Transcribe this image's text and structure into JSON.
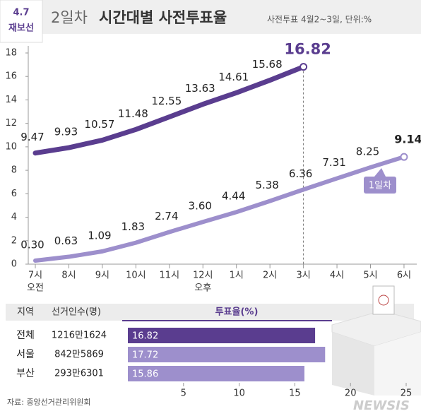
{
  "header": {
    "badge": "4.7",
    "badge_sub": "재보선",
    "title": "2일차",
    "title_bold": "시간대별 사전투표율",
    "subtitle": "사전투표 4월2~3일, 단위:%"
  },
  "chart_data": [
    {
      "type": "line",
      "categories": [
        "7시",
        "8시",
        "9시",
        "10시",
        "11시",
        "12시",
        "1시",
        "2시",
        "3시",
        "4시",
        "5시",
        "6시"
      ],
      "category_sublabels": [
        "오전",
        null,
        null,
        null,
        null,
        "오후",
        null,
        null,
        null,
        null,
        null,
        null
      ],
      "ylim": [
        0,
        18
      ],
      "yticks": [
        0,
        2,
        4,
        6,
        8,
        10,
        12,
        14,
        16,
        18
      ],
      "grid": false,
      "series": [
        {
          "color": "#5a3d8f",
          "values": [
            9.47,
            9.93,
            10.57,
            11.48,
            12.55,
            13.63,
            14.61,
            15.68,
            16.82,
            null,
            null,
            null
          ]
        },
        {
          "name": "1일차",
          "color": "#9d8fcc",
          "values": [
            0.3,
            0.63,
            1.09,
            1.83,
            2.74,
            3.6,
            4.44,
            5.38,
            6.36,
            7.31,
            8.25,
            9.14
          ],
          "value_labels": [
            "0.30",
            "0.63",
            "1.09",
            "1.83",
            "2.74",
            "3.60",
            "4.44",
            "5.38",
            "6.36",
            "7.31",
            "8.25",
            "9.14"
          ]
        }
      ]
    },
    {
      "type": "bar",
      "orientation": "horizontal",
      "columns": [
        "지역",
        "선거인수(명)",
        "투표율(%)"
      ],
      "categories": [
        "전체",
        "서울",
        "부산"
      ],
      "electors": [
        "1216만1624",
        "842만5869",
        "293만6301"
      ],
      "values": [
        16.82,
        17.72,
        15.86
      ],
      "colors": [
        "#5a3d8f",
        "#9d8fcc",
        "#9d8fcc"
      ],
      "xlim": [
        0,
        25
      ],
      "xticks": [
        5,
        10,
        15,
        20,
        25
      ]
    }
  ],
  "source": "자료: 중앙선거관리위원회",
  "watermark": "NEWSIS"
}
